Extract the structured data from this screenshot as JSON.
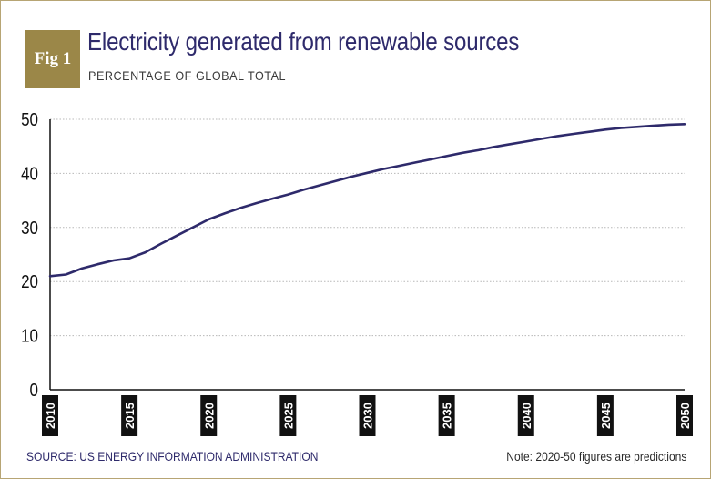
{
  "header": {
    "badge": "Fig 1",
    "title": "Electricity generated from renewable sources",
    "subtitle": "PERCENTAGE OF GLOBAL TOTAL"
  },
  "footer": {
    "source": "SOURCE: US ENERGY INFORMATION ADMINISTRATION",
    "note": "Note: 2020-50 figures are predictions"
  },
  "colors": {
    "line": "#2e2a6b",
    "badge": "#9b8748",
    "grid": "#b8b8b8",
    "tick_label_bg": "#111111"
  },
  "chart_data": {
    "type": "line",
    "x": [
      2010,
      2011,
      2012,
      2013,
      2014,
      2015,
      2016,
      2017,
      2018,
      2019,
      2020,
      2021,
      2022,
      2023,
      2024,
      2025,
      2026,
      2027,
      2028,
      2029,
      2030,
      2031,
      2032,
      2033,
      2034,
      2035,
      2036,
      2037,
      2038,
      2039,
      2040,
      2041,
      2042,
      2043,
      2044,
      2045,
      2046,
      2047,
      2048,
      2049,
      2050
    ],
    "series": [
      {
        "values": [
          21.0,
          21.3,
          22.4,
          23.2,
          23.9,
          24.3,
          25.4,
          27.0,
          28.5,
          30.0,
          31.5,
          32.6,
          33.6,
          34.5,
          35.3,
          36.1,
          37.0,
          37.8,
          38.6,
          39.4,
          40.1,
          40.8,
          41.4,
          42.0,
          42.6,
          43.2,
          43.8,
          44.3,
          44.9,
          45.4,
          45.9,
          46.4,
          46.9,
          47.3,
          47.7,
          48.1,
          48.4,
          48.6,
          48.8,
          49.0,
          49.1
        ]
      }
    ],
    "y_ticks": [
      0,
      10,
      20,
      30,
      40,
      50
    ],
    "x_tick_labels": [
      "2010",
      "2015",
      "2020",
      "2025",
      "2030",
      "2035",
      "2040",
      "2045",
      "2050"
    ],
    "ylim": [
      0,
      50
    ],
    "xlim": [
      2010,
      2050
    ],
    "grid": "horizontal dotted",
    "legend": "none"
  }
}
